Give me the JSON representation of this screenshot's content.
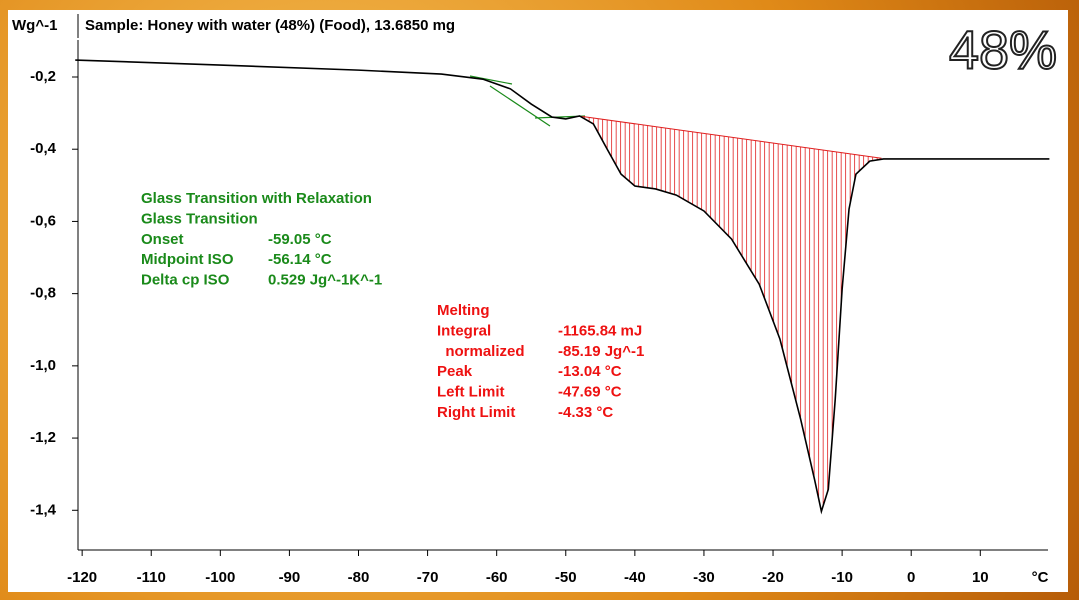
{
  "chart_data": {
    "type": "line",
    "title": "Sample: Honey with water (48%) (Food), 13.6850 mg",
    "badge": "48%",
    "y_label": "Wg^-1",
    "x_label": "°C",
    "x": [
      -121,
      -100,
      -80,
      -68,
      -62,
      -58,
      -55,
      -52,
      -50,
      -48,
      -46,
      -44,
      -42,
      -40,
      -37,
      -34,
      -30,
      -26,
      -22,
      -19,
      -16,
      -14,
      -13,
      -12,
      -11,
      -10,
      -9,
      -8,
      -6,
      -4,
      0,
      20
    ],
    "series": [
      {
        "color": "#000000",
        "values": [
          -0.153,
          -0.167,
          -0.181,
          -0.192,
          -0.206,
          -0.233,
          -0.275,
          -0.311,
          -0.316,
          -0.308,
          -0.33,
          -0.4,
          -0.469,
          -0.502,
          -0.51,
          -0.527,
          -0.571,
          -0.649,
          -0.774,
          -0.926,
          -1.148,
          -1.314,
          -1.403,
          -1.342,
          -1.093,
          -0.788,
          -0.566,
          -0.469,
          -0.433,
          -0.427,
          -0.427,
          -0.427
        ]
      }
    ],
    "integration_baseline": {
      "color": "#e02020",
      "x": [
        -47.7,
        -4.3
      ],
      "values": [
        -0.309,
        -0.425
      ]
    },
    "xlim": [
      -120.6,
      19.8
    ],
    "ylim": [
      -1.51,
      -0.02
    ],
    "xticks": [
      -120,
      -110,
      -100,
      -90,
      -80,
      -70,
      -60,
      -50,
      -40,
      -30,
      -20,
      -10,
      0,
      10
    ],
    "yticks": [
      {
        "value": -0.2,
        "label": "-0,2"
      },
      {
        "value": -0.4,
        "label": "-0,4"
      },
      {
        "value": -0.6,
        "label": "-0,6"
      },
      {
        "value": -0.8,
        "label": "-0,8"
      },
      {
        "value": -1.0,
        "label": "-1,0"
      },
      {
        "value": -1.2,
        "label": "-1,2"
      },
      {
        "value": -1.4,
        "label": "-1,4"
      }
    ],
    "annotations": [
      {
        "color": "#1a8a1a",
        "lines": [
          [
            "Glass Transition with Relaxation"
          ],
          [
            "Glass Transition"
          ],
          [
            "Onset",
            "-59.05 °C"
          ],
          [
            "Midpoint ISO",
            "-56.14 °C"
          ],
          [
            "Delta cp ISO",
            "0.529 Jg^-1K^-1"
          ]
        ]
      },
      {
        "color": "#ee1111",
        "lines": [
          [
            "Melting"
          ],
          [
            "Integral",
            "-1165.84 mJ"
          ],
          [
            "  normalized",
            "-85.19 Jg^-1"
          ],
          [
            "Peak",
            "-13.04 °C"
          ],
          [
            "Left Limit",
            "-47.69 °C"
          ],
          [
            "Right Limit",
            "-4.33 °C"
          ]
        ]
      }
    ]
  }
}
